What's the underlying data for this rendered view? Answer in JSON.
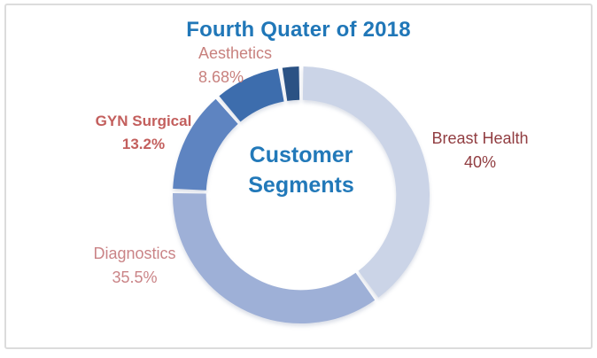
{
  "frame": {
    "border_color": "#dcdcdc",
    "background": "#ffffff"
  },
  "chart_data": {
    "type": "pie",
    "subtype": "donut",
    "title": "Fourth Quater of 2018",
    "title_color": "#2077b8",
    "center_label": [
      "Customer",
      "Segments"
    ],
    "center_label_color": "#2279b9",
    "start_angle_deg": 0,
    "direction": "clockwise",
    "inner_radius_ratio": 0.74,
    "gap_deg": 2,
    "legend": "none",
    "slices": [
      {
        "name": "Breast Health",
        "value": 40,
        "pct_label": "40%",
        "color": "#cbd4e7",
        "label_color": "#913d41",
        "label_bold": false
      },
      {
        "name": "Diagnostics",
        "value": 35.5,
        "pct_label": "35.5%",
        "color": "#9eb0d7",
        "label_color": "#ca8487",
        "label_bold": false
      },
      {
        "name": "GYN Surgical",
        "value": 13.2,
        "pct_label": "13.2%",
        "color": "#5e84c1",
        "label_color": "#c35f5d",
        "label_bold": true
      },
      {
        "name": "Aesthetics",
        "value": 8.68,
        "pct_label": "8.68%",
        "color": "#3d6dad",
        "label_color": "#c8817e",
        "label_bold": false
      },
      {
        "name": "",
        "value": 2.62,
        "pct_label": "",
        "color": "#2b5284",
        "label_bold": false
      }
    ]
  }
}
